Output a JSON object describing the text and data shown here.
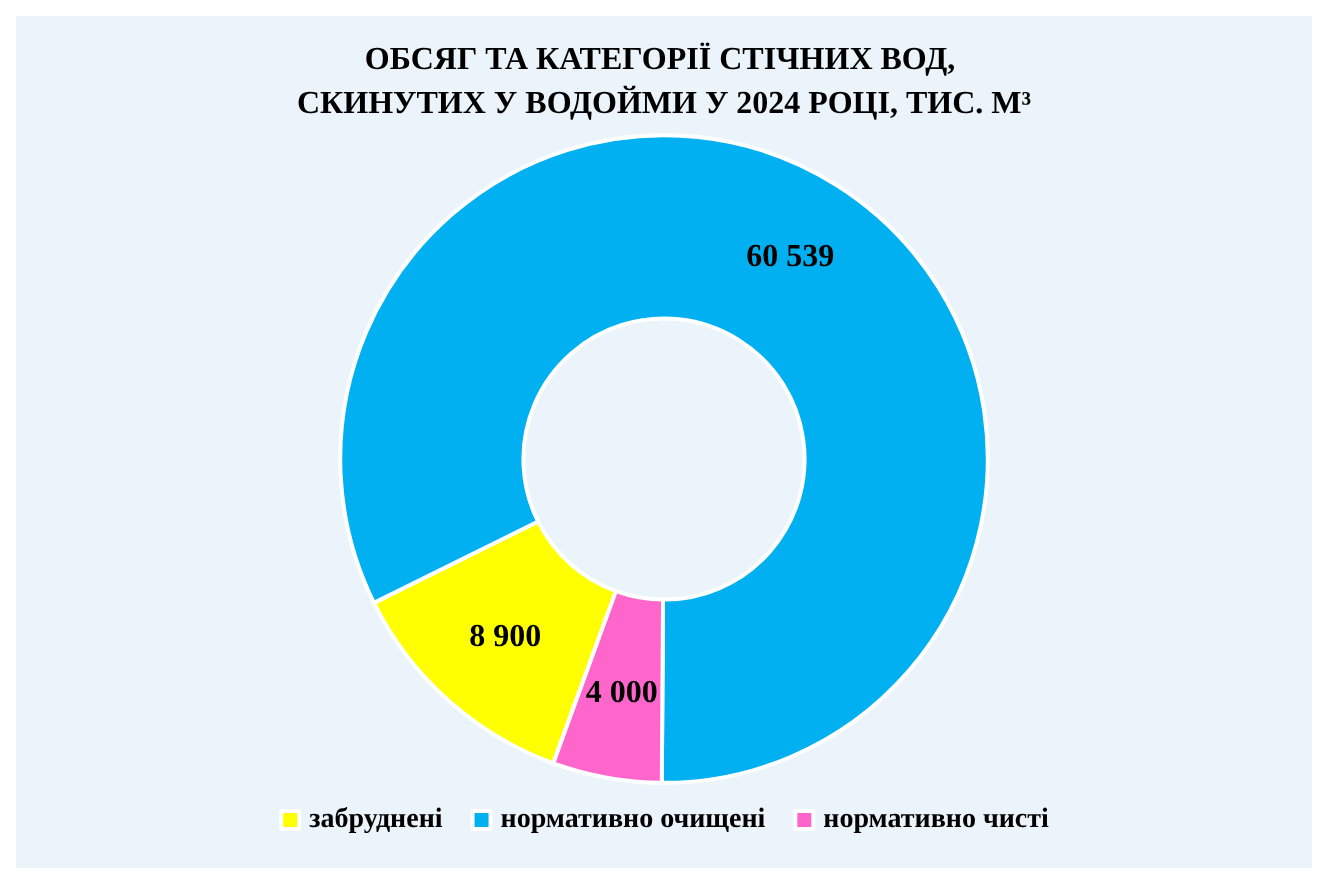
{
  "chart_data": {
    "type": "donut",
    "title": "ОБСЯГ ТА КАТЕГОРІЇ СТІЧНИХ ВОД, СКИНУТИХ У ВОДОЙМИ У 2024 РОЦІ, ТИС. М³",
    "categories": [
      "забруднені",
      "нормативно очищені",
      "нормативно чисті"
    ],
    "values": [
      8900,
      60539,
      4000
    ],
    "colors": [
      "#ffff00",
      "#00b0f0",
      "#ff66cc"
    ],
    "data_labels": true,
    "legend": "bottom"
  }
}
